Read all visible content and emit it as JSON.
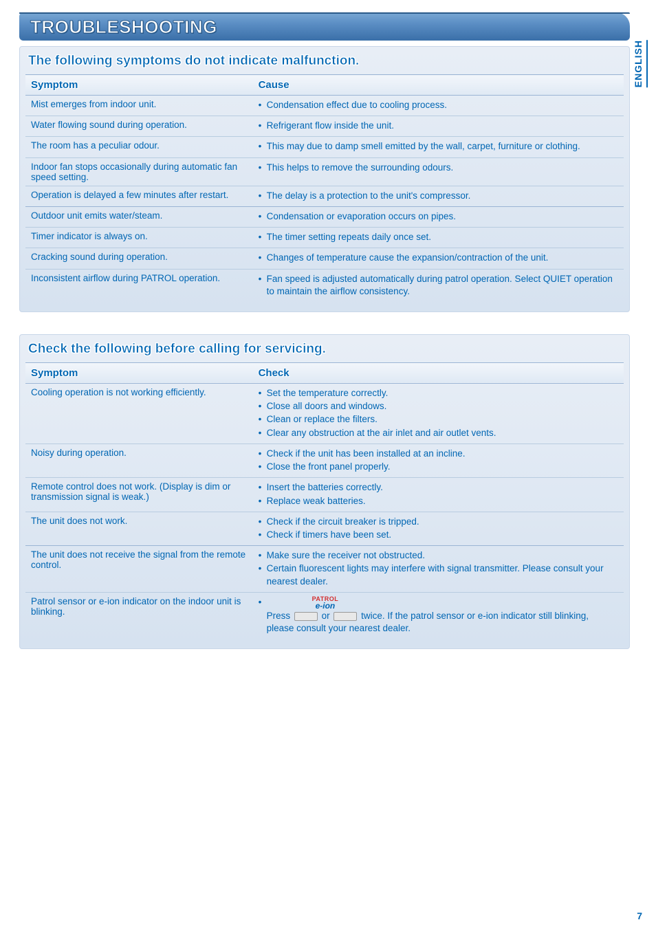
{
  "sideTab": "ENGLISH",
  "title": "TROUBLESHOOTING",
  "pageNumber": "7",
  "section1": {
    "heading": "The following symptoms do not indicate malfunction.",
    "colSymptom": "Symptom",
    "colCause": "Cause",
    "rows": [
      {
        "symptom": "Mist emerges from indoor unit.",
        "causes": [
          "Condensation effect due to cooling process."
        ],
        "groupEnd": false
      },
      {
        "symptom": "Water flowing sound during operation.",
        "causes": [
          "Refrigerant flow inside the unit."
        ],
        "groupEnd": false
      },
      {
        "symptom": "The room has a peculiar odour.",
        "causes": [
          "This may due to damp smell emitted by the wall, carpet, furniture or clothing."
        ],
        "groupEnd": false
      },
      {
        "symptom": "Indoor fan stops occasionally during automatic fan speed setting.",
        "causes": [
          "This helps to remove the surrounding odours."
        ],
        "groupEnd": false
      },
      {
        "symptom": "Operation is delayed a few minutes after restart.",
        "causes": [
          "The delay is a protection to the unit's compressor."
        ],
        "groupEnd": true
      },
      {
        "symptom": "Outdoor unit emits water/steam.",
        "causes": [
          "Condensation or evaporation occurs on pipes."
        ],
        "groupEnd": false
      },
      {
        "symptom": "Timer indicator is always on.",
        "causes": [
          "The timer setting repeats daily once set."
        ],
        "groupEnd": false
      },
      {
        "symptom": "Cracking sound during operation.",
        "causes": [
          "Changes of temperature cause the expansion/contraction of the unit."
        ],
        "groupEnd": false
      },
      {
        "symptom": "Inconsistent airflow during PATROL operation.",
        "causes": [
          "Fan speed is adjusted automatically during patrol operation. Select QUIET operation to maintain the airflow consistency."
        ],
        "groupEnd": false
      }
    ]
  },
  "section2": {
    "heading": "Check the following before calling for servicing.",
    "colSymptom": "Symptom",
    "colCheck": "Check",
    "rows": [
      {
        "symptom": "Cooling operation is not working efficiently.",
        "checks": [
          "Set the temperature correctly.",
          "Close all doors and windows.",
          "Clean or replace the filters.",
          "Clear any obstruction at the air inlet and air outlet vents."
        ],
        "groupEnd": false
      },
      {
        "symptom": "Noisy during operation.",
        "checks": [
          "Check if the unit has been installed at an incline.",
          "Close the front panel properly."
        ],
        "groupEnd": false
      },
      {
        "symptom": "Remote control does not work.\n(Display is dim or transmission signal is weak.)",
        "checks": [
          "Insert the batteries correctly.",
          "Replace weak batteries."
        ],
        "groupEnd": false
      },
      {
        "symptom": "The unit does not work.",
        "checks": [
          "Check if the circuit breaker is tripped.",
          "Check if timers have been set."
        ],
        "groupEnd": true
      },
      {
        "symptom": "The unit does not receive the signal from the remote control.",
        "checks": [
          "Make sure the receiver not obstructed.",
          "Certain fluorescent lights may interfere with signal transmitter. Please consult your nearest dealer."
        ],
        "groupEnd": false
      },
      {
        "symptom": "Patrol sensor or e-ion indicator on the indoor unit is blinking.",
        "special": true,
        "pressWord": "Press",
        "orWord": "or",
        "tailText": "twice. If the patrol sensor or e-ion indicator still blinking, please consult your nearest dealer.",
        "lblPatrol": "PATROL",
        "lblEion": "e-ion",
        "groupEnd": false
      }
    ]
  }
}
